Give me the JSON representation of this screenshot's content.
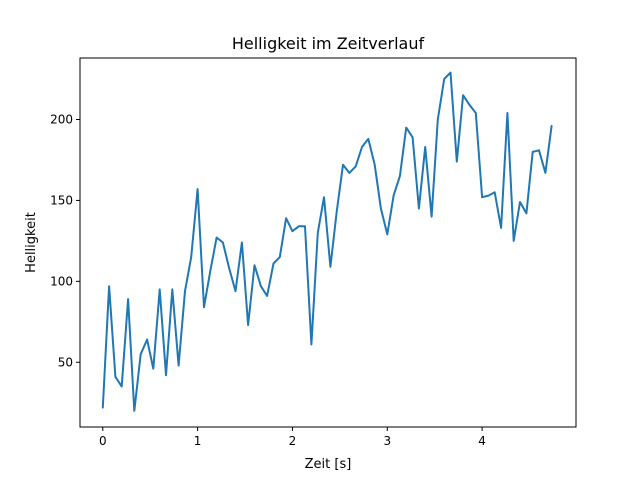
{
  "chart_data": {
    "type": "line",
    "title": "Helligkeit im Zeitverlauf",
    "xlabel": "Zeit [s]",
    "ylabel": "Helligkeit",
    "xlim": [
      -0.24,
      4.99
    ],
    "ylim": [
      10,
      238
    ],
    "xticks": [
      0,
      1,
      2,
      3,
      4
    ],
    "yticks": [
      50,
      100,
      150,
      200
    ],
    "grid": false,
    "color": "#1f77b4",
    "series": [
      {
        "x": [
          0.0,
          0.067,
          0.133,
          0.2,
          0.267,
          0.333,
          0.4,
          0.467,
          0.533,
          0.6,
          0.667,
          0.733,
          0.8,
          0.867,
          0.933,
          1.0,
          1.067,
          1.133,
          1.2,
          1.267,
          1.333,
          1.4,
          1.467,
          1.533,
          1.6,
          1.667,
          1.733,
          1.8,
          1.867,
          1.933,
          2.0,
          2.067,
          2.133,
          2.2,
          2.267,
          2.333,
          2.4,
          2.467,
          2.533,
          2.6,
          2.667,
          2.733,
          2.8,
          2.867,
          2.933,
          3.0,
          3.067,
          3.133,
          3.2,
          3.267,
          3.333,
          3.4,
          3.467,
          3.533,
          3.6,
          3.667,
          3.733,
          3.8,
          3.867,
          3.933,
          4.0,
          4.067,
          4.133,
          4.2,
          4.267,
          4.333,
          4.4,
          4.467,
          4.533,
          4.6,
          4.667,
          4.733
        ],
        "y": [
          22,
          97,
          41,
          35,
          89,
          20,
          55,
          64,
          46,
          95,
          42,
          95,
          48,
          94,
          115,
          157,
          84,
          106,
          127,
          124,
          108,
          94,
          124,
          73,
          110,
          97,
          91,
          111,
          115,
          139,
          131,
          134,
          134,
          61,
          130,
          152,
          109,
          143,
          172,
          167,
          171,
          183,
          188,
          172,
          145,
          129,
          153,
          165,
          195,
          189,
          145,
          183,
          140,
          200,
          225,
          229,
          174,
          215,
          209,
          204,
          152,
          153,
          155,
          133,
          204,
          125,
          149,
          142,
          180,
          181,
          167,
          196
        ]
      }
    ]
  }
}
